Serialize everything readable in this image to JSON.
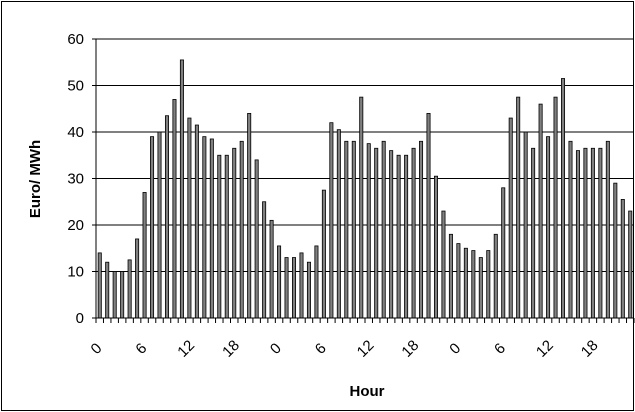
{
  "chart_data": {
    "type": "bar",
    "title": "",
    "xlabel": "Hour",
    "ylabel": "Euro/ MWh",
    "ylim": [
      0,
      60
    ],
    "yticks": [
      0,
      10,
      20,
      30,
      40,
      50,
      60
    ],
    "grid": true,
    "legend": "none",
    "x_tick_labels": [
      "0",
      "6",
      "12",
      "18",
      "0",
      "6",
      "12",
      "18",
      "0",
      "6",
      "12",
      "18"
    ],
    "x_tick_every": 6,
    "bar_color": "#808080",
    "values": [
      14,
      12,
      10,
      10,
      12.5,
      17,
      27,
      39,
      40,
      43.5,
      47,
      55.5,
      43,
      41.5,
      39,
      38.5,
      35,
      35,
      36.5,
      38,
      44,
      34,
      25,
      21,
      15.5,
      13,
      13,
      14,
      12,
      15.5,
      27.5,
      42,
      40.5,
      38,
      38,
      47.5,
      37.5,
      36.5,
      38,
      36,
      35,
      35,
      36.5,
      38,
      44,
      30.5,
      23,
      18,
      16,
      15,
      14.5,
      13,
      14.5,
      18,
      28,
      43,
      47.5,
      40,
      36.5,
      46,
      39,
      47.5,
      51.5,
      38,
      36,
      36.5,
      36.5,
      36.5,
      38,
      29,
      25.5,
      23
    ]
  }
}
